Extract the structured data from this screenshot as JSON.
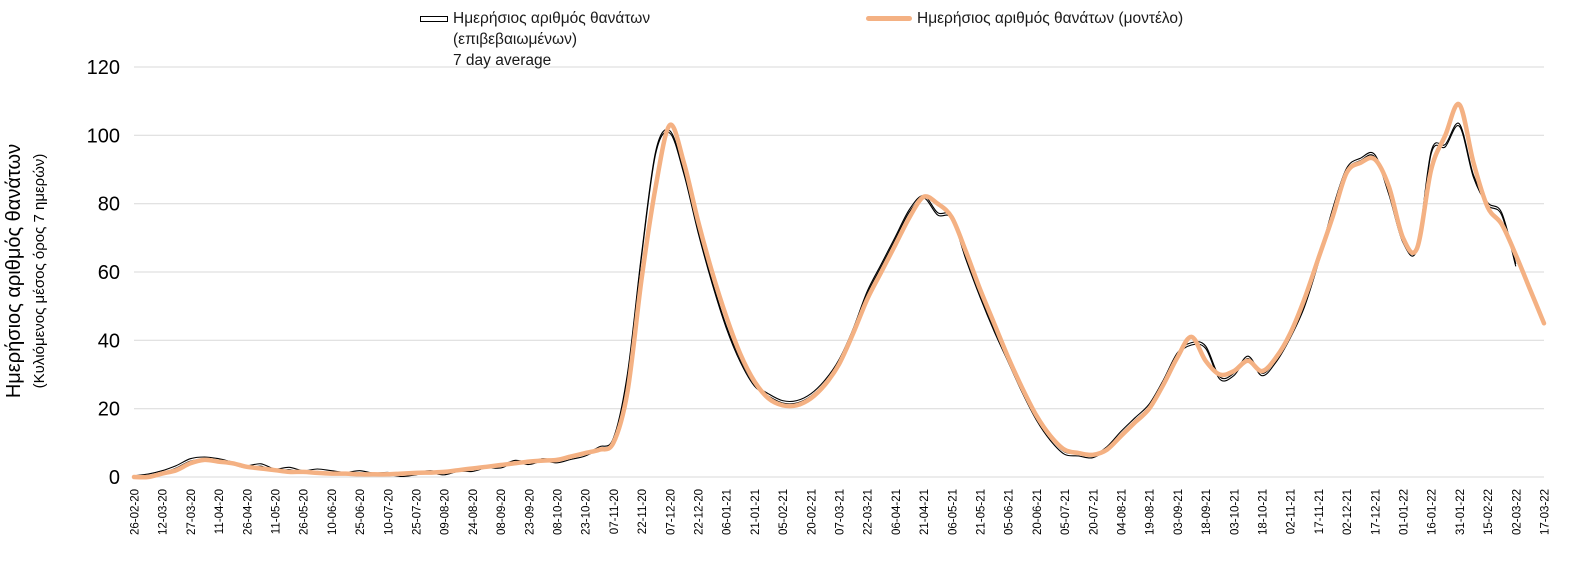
{
  "page": {
    "background": "#ffffff"
  },
  "legend": {
    "confirmed": {
      "line1": "Ημερήσιος αριθμός θανάτων",
      "line2": "(επιβεβαιωμένων)",
      "line3": "7 day average"
    },
    "model": {
      "label": "Ημερήσιος αριθμός θανάτων (μοντέλο)"
    }
  },
  "chart_data": {
    "type": "line",
    "title": "",
    "ylabel": "Ημερήσιος αριθμός θανάτων",
    "ylabel_sub": "(Κυλιόμενος μέσος όρος 7 ημερών)",
    "ylim": [
      0,
      120
    ],
    "yticks": [
      0,
      20,
      40,
      60,
      80,
      100,
      120
    ],
    "grid": "horizontal",
    "gridline_color": "#d9d9d9",
    "legend_position": "top",
    "points_per_tick": 2,
    "x_tick_labels": [
      "26-02-20",
      "12-03-20",
      "27-03-20",
      "11-04-20",
      "26-04-20",
      "11-05-20",
      "26-05-20",
      "10-06-20",
      "25-06-20",
      "10-07-20",
      "25-07-20",
      "09-08-20",
      "24-08-20",
      "08-09-20",
      "23-09-20",
      "08-10-20",
      "23-10-20",
      "07-11-20",
      "22-11-20",
      "07-12-20",
      "22-12-20",
      "06-01-21",
      "21-01-21",
      "05-02-21",
      "20-02-21",
      "07-03-21",
      "22-03-21",
      "06-04-21",
      "21-04-21",
      "06-05-21",
      "21-05-21",
      "05-06-21",
      "20-06-21",
      "05-07-21",
      "20-07-21",
      "04-08-21",
      "19-08-21",
      "03-09-21",
      "18-09-21",
      "03-10-21",
      "18-10-21",
      "02-11-21",
      "17-11-21",
      "02-12-21",
      "17-12-21",
      "01-01-22",
      "16-01-22",
      "31-01-22",
      "15-02-22",
      "02-03-22",
      "17-03-22"
    ],
    "series": [
      {
        "name": "Ημερήσιος αριθμός θανάτων (επιβεβαιωμένων) 7 day average",
        "color": "#000000",
        "line_style": "thin-double",
        "values": [
          0,
          0.5,
          1.5,
          3,
          5,
          5.5,
          5,
          4,
          3,
          3.5,
          2,
          2.5,
          1.5,
          2,
          1.5,
          1,
          1.5,
          0.8,
          1,
          0.5,
          1,
          1.5,
          1,
          2,
          2,
          3,
          3,
          4.5,
          4,
          5,
          4.5,
          5.5,
          6.5,
          8.5,
          11,
          30,
          65,
          95,
          101,
          89,
          72,
          57,
          44,
          34,
          27,
          24,
          22,
          22,
          24,
          28,
          34,
          43,
          54,
          62,
          70,
          78,
          82,
          77,
          76,
          64,
          53,
          43,
          34,
          25,
          17,
          11,
          7,
          6.5,
          6,
          8.5,
          13,
          17,
          21,
          28,
          36,
          39,
          38,
          29,
          30,
          35,
          30,
          34,
          41,
          50,
          63,
          78,
          90,
          93,
          94,
          83,
          69,
          67,
          95,
          97,
          103,
          88,
          80,
          77,
          62,
          null,
          null
        ]
      },
      {
        "name": "Ημερήσιος αριθμός θανάτων (μοντέλο)",
        "color": "#F4B183",
        "line_style": "thick",
        "values": [
          0,
          0,
          1,
          2,
          4,
          5,
          4.5,
          4,
          3,
          2.5,
          2,
          1.5,
          1.5,
          1.2,
          1,
          1,
          0.8,
          0.8,
          0.8,
          1,
          1.2,
          1.3,
          1.5,
          2,
          2.5,
          3,
          3.5,
          4,
          4.5,
          4.8,
          5,
          6,
          7,
          8,
          10,
          25,
          58,
          85,
          103,
          92,
          75,
          60,
          47,
          36,
          28,
          23,
          21,
          21,
          23,
          27,
          33,
          42,
          52,
          60,
          68,
          76,
          82,
          80,
          76,
          66,
          55,
          45,
          35,
          26,
          18,
          12,
          8,
          7,
          6.5,
          8,
          12,
          16,
          20,
          27,
          35,
          41,
          34,
          30,
          31,
          34,
          31,
          35,
          42,
          52,
          64,
          76,
          89,
          92,
          93,
          85,
          70,
          67,
          90,
          100,
          109,
          92,
          79,
          74,
          65,
          55,
          45
        ]
      }
    ]
  }
}
